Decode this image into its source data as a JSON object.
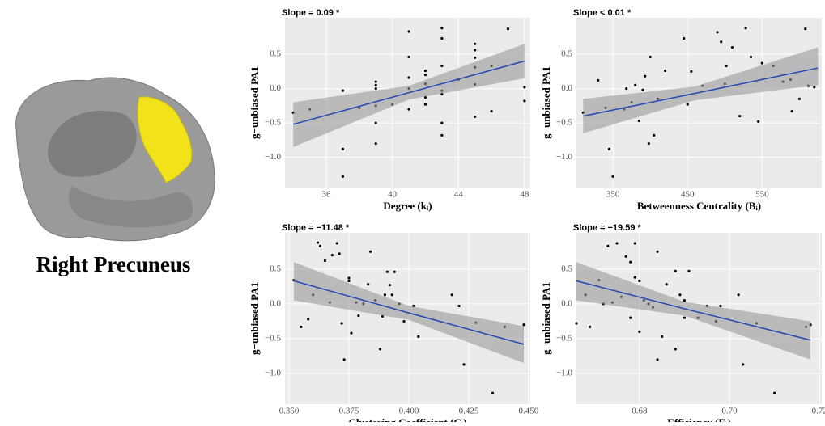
{
  "figure_label": "Right Precuneus",
  "chart_data": [
    {
      "type": "scatter",
      "title": "Slope = 0.09 *",
      "x_label": "Degree (kᵢ)",
      "y_label": "g−unbiased PA1",
      "xlim": [
        33.5,
        48.35
      ],
      "ylim": [
        -1.44,
        1.03
      ],
      "xticks": [
        36,
        40,
        44,
        48
      ],
      "yticks": [
        {
          "value": -1,
          "label": "−1.0"
        },
        {
          "value": -0.5,
          "label": "−0.5"
        },
        {
          "value": 0,
          "label": "0.0"
        },
        0.5
      ],
      "grid": true,
      "color": "#000000",
      "fit_color": "#2447b3",
      "band_color": "#999999",
      "x": [
        34,
        35,
        37,
        37,
        37,
        38,
        39,
        39,
        39,
        39,
        39,
        39,
        40,
        41,
        41,
        41,
        41,
        41,
        42,
        42,
        42,
        42,
        42,
        43,
        43,
        43,
        43,
        43,
        43,
        43,
        44,
        45,
        45,
        45,
        45,
        45,
        45,
        46,
        46,
        47,
        48,
        48
      ],
      "y": [
        -0.35,
        -0.3,
        -0.03,
        -0.88,
        -1.28,
        -0.28,
        0.1,
        0.05,
        0,
        -0.25,
        -0.5,
        -0.8,
        -0.23,
        0.83,
        0.46,
        0.16,
        0,
        -0.3,
        0.26,
        0.2,
        0.07,
        -0.13,
        -0.23,
        0.88,
        0.73,
        0.33,
        -0.03,
        -0.08,
        -0.5,
        -0.68,
        0.13,
        0.65,
        0.56,
        0.45,
        0.31,
        0.06,
        -0.41,
        0.33,
        -0.33,
        0.87,
        0.02,
        -0.18
      ],
      "fit": {
        "x": [
          34,
          41,
          48
        ],
        "y": [
          -0.52,
          -0.06,
          0.4
        ],
        "lower": [
          -0.85,
          -0.16,
          0.15
        ],
        "upper": [
          -0.2,
          0.04,
          0.65
        ]
      }
    },
    {
      "type": "scatter",
      "title": "Slope < 0.01 *",
      "x_label": "Betweenness Centrality (Bᵢ)",
      "y_label": "g−unbiased PA1",
      "xlim": [
        301,
        630
      ],
      "ylim": [
        -1.44,
        1.03
      ],
      "xticks": [
        350,
        450,
        550
      ],
      "yticks": [
        {
          "value": -1,
          "label": "−1.0"
        },
        {
          "value": -0.5,
          "label": "−0.5"
        },
        {
          "value": 0,
          "label": "0.0"
        },
        0.5
      ],
      "grid": true,
      "color": "#000000",
      "fit_color": "#2447b3",
      "band_color": "#999999",
      "x": [
        310,
        330,
        340,
        345,
        350,
        365,
        368,
        375,
        380,
        385,
        390,
        393,
        398,
        400,
        405,
        410,
        420,
        445,
        450,
        455,
        470,
        490,
        495,
        500,
        502,
        510,
        520,
        528,
        535,
        545,
        550,
        565,
        578,
        588,
        590,
        600,
        608,
        612,
        620
      ],
      "y": [
        -0.35,
        0.12,
        -0.28,
        -0.88,
        -1.28,
        -0.3,
        0,
        -0.2,
        0.05,
        -0.47,
        -0.02,
        0.18,
        -0.8,
        0.46,
        -0.68,
        -0.15,
        0.26,
        0.73,
        -0.23,
        0.25,
        0.04,
        0.82,
        0.68,
        0.07,
        0.33,
        0.6,
        -0.4,
        0.88,
        0.46,
        -0.48,
        0.37,
        0.33,
        0.1,
        0.13,
        -0.33,
        -0.15,
        0.87,
        0.04,
        0.02
      ],
      "fit": {
        "x": [
          310,
          460,
          625
        ],
        "y": [
          -0.4,
          -0.07,
          0.3
        ],
        "lower": [
          -0.65,
          -0.17,
          0.05
        ],
        "upper": [
          -0.15,
          0.03,
          0.6
        ]
      }
    },
    {
      "type": "scatter",
      "title": "Slope = −11.48 *",
      "x_label": "Clustering Coefficient (Cᵢ)",
      "y_label": "g−unbiased PA1",
      "xlim": [
        0.3483,
        0.4507
      ],
      "ylim": [
        -1.44,
        1.02
      ],
      "xticks": [
        {
          "value": 0.35,
          "label": "0.350"
        },
        {
          "value": 0.375,
          "label": "0.375"
        },
        {
          "value": 0.4,
          "label": "0.400"
        },
        {
          "value": 0.425,
          "label": "0.425"
        },
        {
          "value": 0.45,
          "label": "0.450"
        }
      ],
      "yticks": [
        {
          "value": -1,
          "label": "−1.0"
        },
        {
          "value": -0.5,
          "label": "−0.5"
        },
        {
          "value": 0,
          "label": "0.0"
        },
        0.5
      ],
      "grid": true,
      "color": "#000000",
      "fit_color": "#2447b3",
      "band_color": "#999999",
      "x": [
        0.352,
        0.355,
        0.358,
        0.36,
        0.362,
        0.363,
        0.365,
        0.367,
        0.368,
        0.37,
        0.371,
        0.372,
        0.373,
        0.375,
        0.375,
        0.376,
        0.378,
        0.379,
        0.381,
        0.383,
        0.384,
        0.386,
        0.388,
        0.389,
        0.39,
        0.391,
        0.392,
        0.393,
        0.394,
        0.396,
        0.398,
        0.402,
        0.404,
        0.418,
        0.421,
        0.423,
        0.428,
        0.435,
        0.44,
        0.448
      ],
      "y": [
        0.34,
        -0.33,
        -0.22,
        0.13,
        0.88,
        0.83,
        0.62,
        0.02,
        0.7,
        0.87,
        0.72,
        -0.28,
        -0.8,
        0.37,
        0.33,
        -0.42,
        0.02,
        -0.17,
        0,
        0.28,
        0.75,
        0.05,
        -0.65,
        -0.18,
        0.13,
        0.46,
        0.27,
        0.13,
        0.46,
        0,
        -0.25,
        -0.03,
        -0.47,
        0.13,
        -0.03,
        -0.87,
        -0.27,
        -1.28,
        -0.33,
        -0.3
      ],
      "fit": {
        "x": [
          0.352,
          0.4,
          0.448
        ],
        "y": [
          0.33,
          -0.13,
          -0.58
        ],
        "lower": [
          0.05,
          -0.23,
          -0.85
        ],
        "upper": [
          0.6,
          -0.03,
          -0.32
        ]
      }
    },
    {
      "type": "scatter",
      "title": "Slope = −19.59 *",
      "x_label": "Efficiency (Eᵢ)",
      "y_label": "g−unbiased PA1",
      "xlim": [
        0.666,
        0.7205
      ],
      "ylim": [
        -1.44,
        1.02
      ],
      "xticks": [
        {
          "value": 0.68,
          "label": "0.68"
        },
        {
          "value": 0.7,
          "label": "0.70"
        },
        {
          "value": 0.72,
          "label": "0.72"
        }
      ],
      "yticks": [
        {
          "value": -1,
          "label": "−1.0"
        },
        {
          "value": -0.5,
          "label": "−0.5"
        },
        {
          "value": 0,
          "label": "0.0"
        },
        0.5
      ],
      "grid": true,
      "color": "#000000",
      "fit_color": "#2447b3",
      "band_color": "#999999",
      "x": [
        0.666,
        0.668,
        0.669,
        0.671,
        0.672,
        0.673,
        0.674,
        0.675,
        0.676,
        0.677,
        0.678,
        0.678,
        0.679,
        0.679,
        0.68,
        0.68,
        0.681,
        0.682,
        0.683,
        0.684,
        0.684,
        0.685,
        0.686,
        0.688,
        0.688,
        0.689,
        0.69,
        0.69,
        0.691,
        0.693,
        0.695,
        0.697,
        0.698,
        0.702,
        0.703,
        0.706,
        0.71,
        0.717,
        0.718
      ],
      "y": [
        -0.28,
        0.13,
        -0.33,
        0.34,
        0,
        0.83,
        0.02,
        0.87,
        0.1,
        0.68,
        0.6,
        -0.2,
        0.87,
        0.38,
        0.33,
        -0.4,
        0.05,
        0,
        -0.05,
        0.75,
        -0.8,
        -0.47,
        0.28,
        0.47,
        -0.65,
        0.13,
        -0.2,
        0.05,
        0.47,
        -0.2,
        -0.03,
        -0.25,
        -0.03,
        0.13,
        -0.87,
        -0.28,
        -1.28,
        -0.33,
        -0.3
      ],
      "fit": {
        "x": [
          0.666,
          0.69,
          0.718
        ],
        "y": [
          0.33,
          -0.07,
          -0.52
        ],
        "lower": [
          0.05,
          -0.17,
          -0.8
        ],
        "upper": [
          0.6,
          0.03,
          -0.25
        ]
      }
    }
  ]
}
